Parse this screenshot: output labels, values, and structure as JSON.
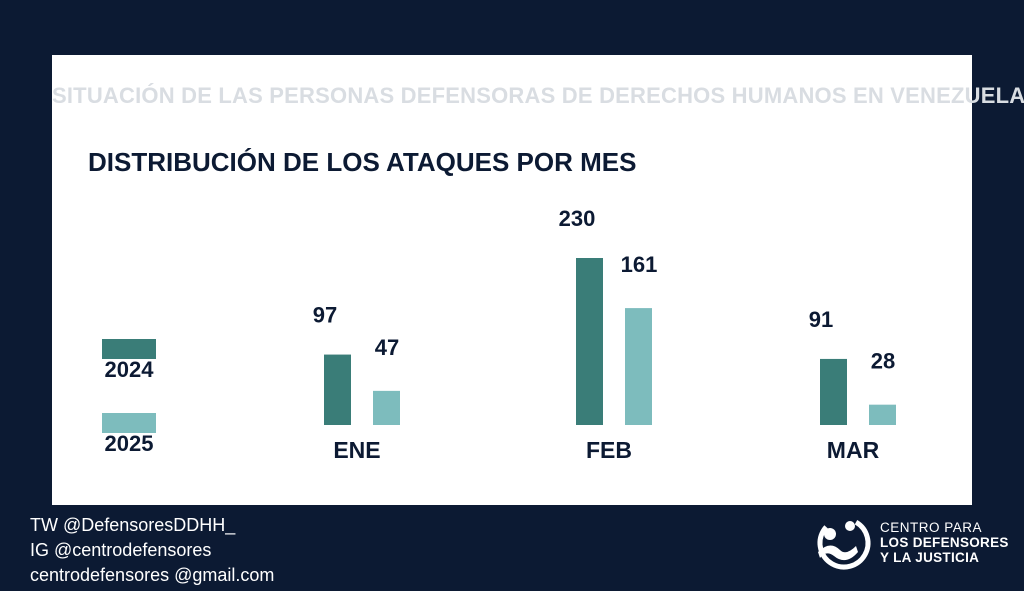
{
  "header": {
    "supertitle": "SITUACIÓN DE LAS PERSONAS DEFENSORAS DE DERECHOS HUMANOS EN VENEZUELA"
  },
  "colors": {
    "background": "#0c1a33",
    "panel": "#ffffff",
    "series_2024": "#3a7d78",
    "series_2025": "#7dbcbd",
    "text_dark": "#0c1a33",
    "supertitle": "#d9dde2"
  },
  "chart_data": {
    "type": "bar",
    "title": "DISTRIBUCIÓN DE LOS ATAQUES POR MES",
    "categories": [
      "ENE",
      "FEB",
      "MAR"
    ],
    "series": [
      {
        "name": "2024",
        "values": [
          97,
          230,
          91
        ]
      },
      {
        "name": "2025",
        "values": [
          47,
          161,
          28
        ]
      }
    ],
    "xlabel": "",
    "ylabel": "",
    "ylim": [
      0,
      230
    ],
    "grid": false,
    "legend_position": "left"
  },
  "footer": {
    "twitter": "TW @DefensoresDDHH_",
    "instagram": "IG @centrodefensores",
    "email": "centrodefensores @gmail.com"
  },
  "logo": {
    "line1": "CENTRO PARA",
    "line2": "LOS DEFENSORES",
    "line3": "Y LA JUSTICIA"
  }
}
